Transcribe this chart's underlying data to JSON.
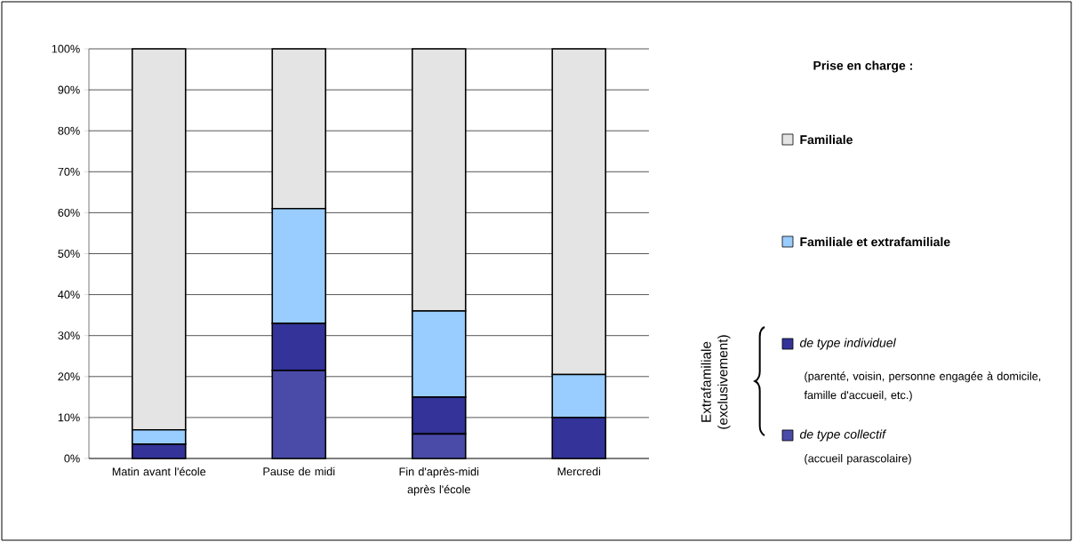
{
  "chart_data": {
    "type": "bar",
    "stacked": true,
    "categories": [
      "Matin avant l'école",
      "Pause de midi",
      "Fin d'après-midi après l'école",
      "Mercredi"
    ],
    "series": [
      {
        "name": "de type collectif",
        "color": "#4a4aa8",
        "values": [
          0,
          21.5,
          6,
          0
        ]
      },
      {
        "name": "de type individuel",
        "color": "#333399",
        "values": [
          3.5,
          11.5,
          9,
          10
        ]
      },
      {
        "name": "Familiale et extrafamiliale",
        "color": "#99ccff",
        "values": [
          3.5,
          28,
          21,
          10.5
        ]
      },
      {
        "name": "Familiale",
        "color": "#e4e4e4",
        "values": [
          93,
          39,
          64,
          79.5
        ]
      }
    ],
    "ylim": [
      0,
      100
    ],
    "yticks": [
      {
        "value": 0,
        "label": "0%"
      },
      {
        "value": 10,
        "label": "10%"
      },
      {
        "value": 20,
        "label": "20%"
      },
      {
        "value": 30,
        "label": "30%"
      },
      {
        "value": 40,
        "label": "40%"
      },
      {
        "value": 50,
        "label": "50%"
      },
      {
        "value": 60,
        "label": "60%"
      },
      {
        "value": 70,
        "label": "70%"
      },
      {
        "value": 80,
        "label": "80%"
      },
      {
        "value": 90,
        "label": "90%"
      },
      {
        "value": 100,
        "label": "100%"
      }
    ],
    "grid": "y",
    "legend": "right",
    "legend_title": "Prise en charge :",
    "annotations": [
      "Extrafamiliale (exclusivement)",
      "(parenté, voisin, personne engagée à domicile, famille d'accueil, etc.)",
      "(accueil parascolaire)"
    ]
  }
}
